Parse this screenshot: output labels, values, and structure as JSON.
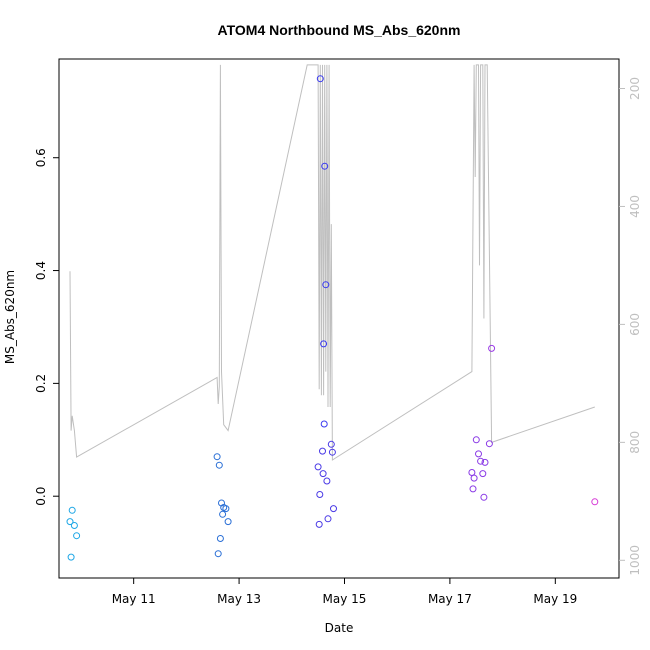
{
  "chart_data": {
    "type": "scatter",
    "title": "ATOM4 Northbound MS_Abs_620nm",
    "xlabel": "Date",
    "ylabel": "MS_Abs_620nm",
    "xlim": [
      "2024-05-09T14:00",
      "2024-05-20T05:00"
    ],
    "ylim": [
      -0.145,
      0.775
    ],
    "x_ticks": [
      {
        "x": "2024-05-11T00:00",
        "label": "May 11"
      },
      {
        "x": "2024-05-13T00:00",
        "label": "May 13"
      },
      {
        "x": "2024-05-15T00:00",
        "label": "May 15"
      },
      {
        "x": "2024-05-17T00:00",
        "label": "May 17"
      },
      {
        "x": "2024-05-19T00:00",
        "label": "May 19"
      }
    ],
    "y_ticks": [
      0.0,
      0.2,
      0.4,
      0.6
    ],
    "y_tick_labels": [
      "0.0",
      "0.2",
      "0.4",
      "0.6"
    ],
    "right_axis": {
      "ylim": [
        1030,
        150
      ],
      "ticks": [
        200,
        400,
        600,
        800,
        1000
      ],
      "tick_labels": [
        "200",
        "400",
        "600",
        "800",
        "1000"
      ],
      "color": "#bfbfbf"
    },
    "series": [
      {
        "marker": "open-circle",
        "points": [
          {
            "x": "2024-05-09T19:00",
            "y": -0.045,
            "color": "#1ea7e6"
          },
          {
            "x": "2024-05-09T20:00",
            "y": -0.025,
            "color": "#1ea7e6"
          },
          {
            "x": "2024-05-09T21:00",
            "y": -0.052,
            "color": "#1ea7e6"
          },
          {
            "x": "2024-05-09T22:00",
            "y": -0.07,
            "color": "#1ea7e6"
          },
          {
            "x": "2024-05-09T19:30",
            "y": -0.108,
            "color": "#1ea7e6"
          },
          {
            "x": "2024-05-12T14:00",
            "y": 0.07,
            "color": "#2a6fd6"
          },
          {
            "x": "2024-05-12T15:00",
            "y": 0.055,
            "color": "#2a6fd6"
          },
          {
            "x": "2024-05-12T16:00",
            "y": -0.012,
            "color": "#2a6fd6"
          },
          {
            "x": "2024-05-12T17:00",
            "y": -0.02,
            "color": "#2a6fd6"
          },
          {
            "x": "2024-05-12T18:00",
            "y": -0.022,
            "color": "#2a6fd6"
          },
          {
            "x": "2024-05-12T16:30",
            "y": -0.032,
            "color": "#2a6fd6"
          },
          {
            "x": "2024-05-12T19:00",
            "y": -0.045,
            "color": "#2a6fd6"
          },
          {
            "x": "2024-05-12T15:30",
            "y": -0.075,
            "color": "#2a6fd6"
          },
          {
            "x": "2024-05-12T14:30",
            "y": -0.102,
            "color": "#2a6fd6"
          },
          {
            "x": "2024-05-14T13:00",
            "y": 0.74,
            "color": "#3a3af0"
          },
          {
            "x": "2024-05-14T15:00",
            "y": 0.585,
            "color": "#3a3af0"
          },
          {
            "x": "2024-05-14T15:30",
            "y": 0.375,
            "color": "#3a3af0"
          },
          {
            "x": "2024-05-14T14:30",
            "y": 0.27,
            "color": "#3a3af0"
          },
          {
            "x": "2024-05-14T14:45",
            "y": 0.128,
            "color": "#3a3af0"
          },
          {
            "x": "2024-05-14T18:00",
            "y": 0.092,
            "color": "#4a3ae6"
          },
          {
            "x": "2024-05-14T14:00",
            "y": 0.08,
            "color": "#4a3ae6"
          },
          {
            "x": "2024-05-14T18:30",
            "y": 0.078,
            "color": "#4a3ae6"
          },
          {
            "x": "2024-05-14T12:00",
            "y": 0.052,
            "color": "#4a3ae6"
          },
          {
            "x": "2024-05-14T14:15",
            "y": 0.04,
            "color": "#4a3ae6"
          },
          {
            "x": "2024-05-14T16:00",
            "y": 0.027,
            "color": "#4a3ae6"
          },
          {
            "x": "2024-05-14T12:45",
            "y": 0.003,
            "color": "#4a3ae6"
          },
          {
            "x": "2024-05-14T19:00",
            "y": -0.022,
            "color": "#4a3ae6"
          },
          {
            "x": "2024-05-14T16:30",
            "y": -0.04,
            "color": "#4a3ae6"
          },
          {
            "x": "2024-05-14T12:30",
            "y": -0.05,
            "color": "#4a3ae6"
          },
          {
            "x": "2024-05-17T12:00",
            "y": 0.1,
            "color": "#8a3ae6"
          },
          {
            "x": "2024-05-17T18:00",
            "y": 0.093,
            "color": "#8a3ae6"
          },
          {
            "x": "2024-05-17T13:00",
            "y": 0.075,
            "color": "#8a3ae6"
          },
          {
            "x": "2024-05-17T14:00",
            "y": 0.062,
            "color": "#8a3ae6"
          },
          {
            "x": "2024-05-17T16:00",
            "y": 0.06,
            "color": "#8a3ae6"
          },
          {
            "x": "2024-05-17T10:00",
            "y": 0.042,
            "color": "#8a3ae6"
          },
          {
            "x": "2024-05-17T15:00",
            "y": 0.04,
            "color": "#8a3ae6"
          },
          {
            "x": "2024-05-17T11:00",
            "y": 0.032,
            "color": "#8a3ae6"
          },
          {
            "x": "2024-05-17T10:30",
            "y": 0.013,
            "color": "#8a3ae6"
          },
          {
            "x": "2024-05-17T15:30",
            "y": -0.002,
            "color": "#8a3ae6"
          },
          {
            "x": "2024-05-17T19:00",
            "y": 0.262,
            "color": "#9a3ae6"
          },
          {
            "x": "2024-05-19T18:00",
            "y": -0.01,
            "color": "#d63ad6"
          }
        ]
      },
      {
        "type": "line",
        "axis": "right",
        "color": "#bfbfbf",
        "points": [
          {
            "x": "2024-05-09T19:00",
            "y": 510
          },
          {
            "x": "2024-05-09T19:30",
            "y": 780
          },
          {
            "x": "2024-05-09T20:00",
            "y": 755
          },
          {
            "x": "2024-05-09T21:00",
            "y": 780
          },
          {
            "x": "2024-05-09T22:00",
            "y": 825
          },
          {
            "x": "2024-05-12T14:00",
            "y": 690
          },
          {
            "x": "2024-05-12T14:30",
            "y": 735
          },
          {
            "x": "2024-05-12T15:00",
            "y": 705
          },
          {
            "x": "2024-05-12T15:30",
            "y": 160
          },
          {
            "x": "2024-05-12T16:00",
            "y": 680
          },
          {
            "x": "2024-05-12T17:00",
            "y": 770
          },
          {
            "x": "2024-05-12T19:00",
            "y": 780
          },
          {
            "x": "2024-05-14T07:00",
            "y": 160
          },
          {
            "x": "2024-05-14T12:00",
            "y": 160
          },
          {
            "x": "2024-05-14T12:30",
            "y": 710
          },
          {
            "x": "2024-05-14T13:00",
            "y": 160
          },
          {
            "x": "2024-05-14T13:30",
            "y": 720
          },
          {
            "x": "2024-05-14T14:00",
            "y": 160
          },
          {
            "x": "2024-05-14T14:30",
            "y": 720
          },
          {
            "x": "2024-05-14T15:00",
            "y": 160
          },
          {
            "x": "2024-05-14T15:30",
            "y": 680
          },
          {
            "x": "2024-05-14T16:00",
            "y": 160
          },
          {
            "x": "2024-05-14T16:30",
            "y": 740
          },
          {
            "x": "2024-05-14T17:00",
            "y": 160
          },
          {
            "x": "2024-05-14T17:30",
            "y": 740
          },
          {
            "x": "2024-05-14T18:00",
            "y": 430
          },
          {
            "x": "2024-05-14T18:30",
            "y": 830
          },
          {
            "x": "2024-05-17T10:00",
            "y": 680
          },
          {
            "x": "2024-05-17T11:00",
            "y": 160
          },
          {
            "x": "2024-05-17T11:30",
            "y": 350
          },
          {
            "x": "2024-05-17T12:00",
            "y": 160
          },
          {
            "x": "2024-05-17T13:00",
            "y": 160
          },
          {
            "x": "2024-05-17T13:30",
            "y": 500
          },
          {
            "x": "2024-05-17T14:00",
            "y": 160
          },
          {
            "x": "2024-05-17T15:00",
            "y": 160
          },
          {
            "x": "2024-05-17T15:30",
            "y": 590
          },
          {
            "x": "2024-05-17T16:00",
            "y": 160
          },
          {
            "x": "2024-05-17T17:00",
            "y": 160
          },
          {
            "x": "2024-05-17T19:00",
            "y": 800
          },
          {
            "x": "2024-05-19T18:00",
            "y": 740
          }
        ]
      }
    ],
    "grid": false,
    "legend": "none"
  }
}
